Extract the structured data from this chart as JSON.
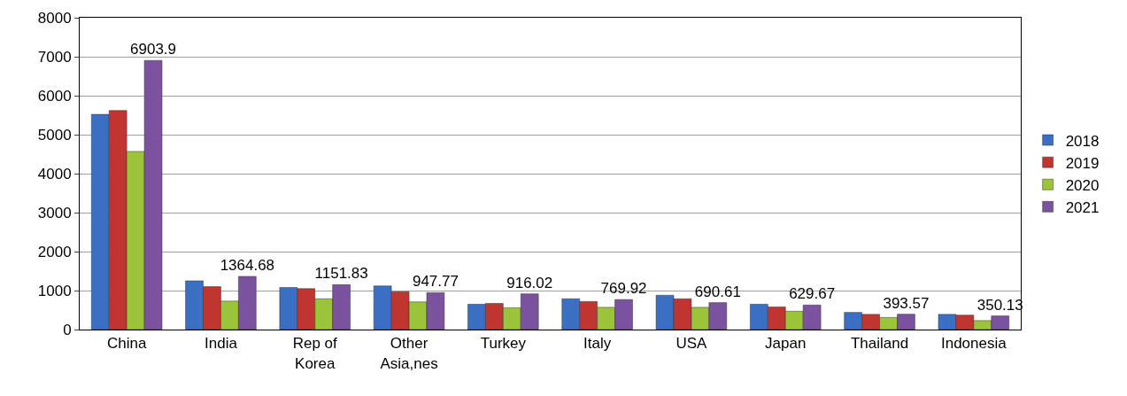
{
  "chart_data": {
    "type": "bar",
    "categories": [
      "China",
      "India",
      "Rep of\nKorea",
      "Other\nAsia,nes",
      "Turkey",
      "Italy",
      "USA",
      "Japan",
      "Thailand",
      "Indonesia"
    ],
    "series": [
      {
        "name": "2018",
        "color": "#3a6fc4",
        "values": [
          5520,
          1250,
          1080,
          1120,
          650,
          790,
          880,
          650,
          440,
          390
        ]
      },
      {
        "name": "2019",
        "color": "#c0352f",
        "values": [
          5620,
          1100,
          1050,
          970,
          670,
          720,
          790,
          580,
          390,
          370
        ]
      },
      {
        "name": "2020",
        "color": "#9bc43a",
        "values": [
          4570,
          730,
          790,
          710,
          560,
          570,
          570,
          470,
          310,
          230
        ]
      },
      {
        "name": "2021",
        "color": "#7b529e",
        "values": [
          6903.9,
          1364.68,
          1151.83,
          947.77,
          916.02,
          769.92,
          690.61,
          629.67,
          393.57,
          350.13
        ],
        "value_labels": [
          "6903.9",
          "1364.68",
          "1151.83",
          "947.77",
          "916.02",
          "769.92",
          "690.61",
          "629.67",
          "393.57",
          "350.13"
        ]
      }
    ],
    "ylim": [
      0,
      8000
    ],
    "yticks": [
      0,
      1000,
      2000,
      3000,
      4000,
      5000,
      6000,
      7000,
      8000
    ],
    "grid": "y",
    "legend": "right"
  }
}
